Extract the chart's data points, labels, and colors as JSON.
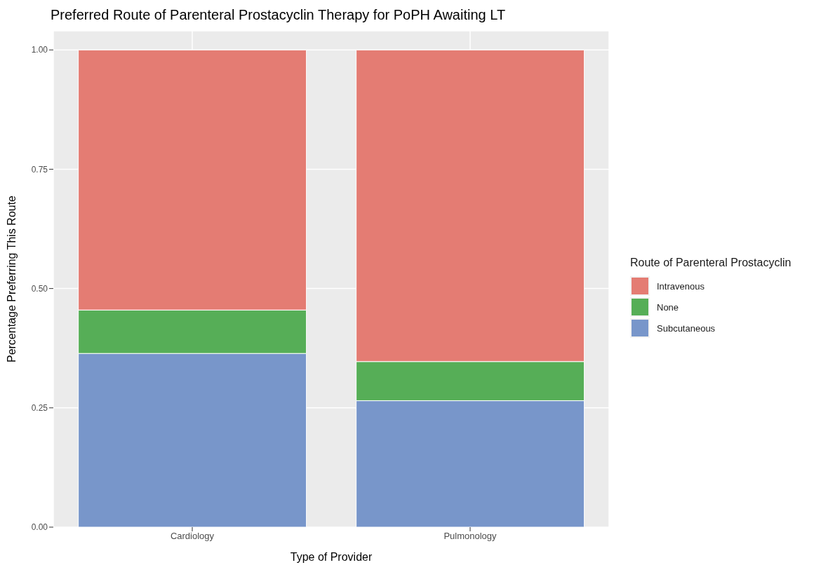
{
  "chart_data": {
    "type": "bar",
    "title": "Preferred Route of Parenteral Prostacyclin Therapy for PoPH Awaiting LT",
    "xlabel": "Type of Provider",
    "ylabel": "Percentage Preferring This Route",
    "legend_title": "Route of Parenteral Prostacyclin",
    "categories": [
      "Cardiology",
      "Pulmonology"
    ],
    "stacked": true,
    "series": [
      {
        "name": "Subcutaneous",
        "color": "#7896ca",
        "values": [
          0.364,
          0.265
        ]
      },
      {
        "name": "None",
        "color": "#56ae57",
        "values": [
          0.091,
          0.082
        ]
      },
      {
        "name": "Intravenous",
        "color": "#e47c73",
        "values": [
          0.545,
          0.653
        ]
      }
    ],
    "ylim": [
      0,
      1.04
    ],
    "yticks": [
      {
        "value": 0,
        "label": "0.00"
      },
      {
        "value": 0.25,
        "label": "0.25"
      },
      {
        "value": 0.5,
        "label": "0.50"
      },
      {
        "value": 0.75,
        "label": "0.75"
      },
      {
        "value": 1,
        "label": "1.00"
      }
    ],
    "grid": true,
    "legend": "right"
  }
}
